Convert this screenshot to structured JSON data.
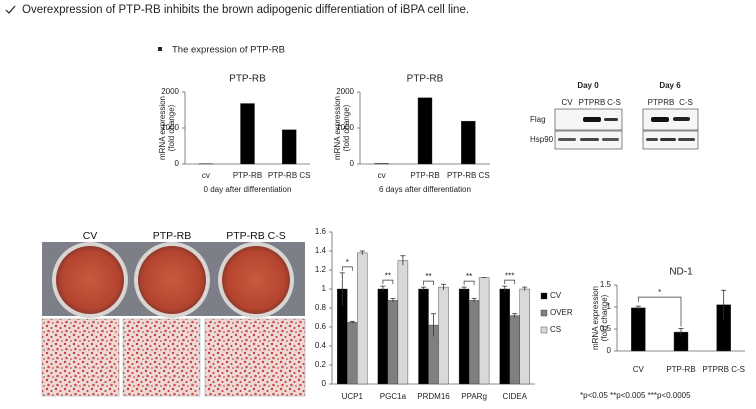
{
  "header": {
    "title": "Overexpression of PTP-RB inhibits the brown adipogenic differentiation of iBPA cell line.",
    "subtitle": "The expression of PTP-RB"
  },
  "chart_data": [
    {
      "type": "bar",
      "title": "PTP-RB",
      "ylabel": [
        "mRNA expression",
        "(fold change)"
      ],
      "xlabel": "0 day after differentiation",
      "categories": [
        "cv",
        "PTP-RB",
        "PTP-RB CS"
      ],
      "values": [
        10,
        1680,
        950
      ],
      "color": "#000000",
      "ylim": [
        0,
        2000
      ],
      "yticks": [
        0,
        1000,
        2000
      ]
    },
    {
      "type": "bar",
      "title": "PTP-RB",
      "ylabel": [
        "mRNA expression",
        "(fold change)"
      ],
      "xlabel": "6 days after differentiation",
      "categories": [
        "cv",
        "PTP-RB",
        "PTP-RB CS"
      ],
      "values": [
        15,
        1840,
        1190
      ],
      "color": "#000000",
      "ylim": [
        0,
        2000
      ],
      "yticks": [
        0,
        1000,
        2000
      ]
    },
    {
      "type": "bar",
      "categories": [
        "UCP1",
        "PGC1a",
        "PRDM16",
        "PPARg",
        "CIDEA"
      ],
      "series": [
        {
          "name": "CV",
          "color": "#000000",
          "values": [
            1,
            1,
            1,
            1,
            1
          ],
          "errors": [
            0.17,
            0.03,
            0.02,
            0.02,
            0.03
          ]
        },
        {
          "name": "OVER",
          "color": "#808080",
          "values": [
            0.65,
            0.88,
            0.62,
            0.88,
            0.72
          ],
          "errors": [
            0.01,
            0.02,
            0.12,
            0.02,
            0.02
          ]
        },
        {
          "name": "CS",
          "color": "#d9d9d9",
          "values": [
            1.38,
            1.3,
            1.02,
            1.12,
            1.0
          ],
          "errors": [
            0.02,
            0.05,
            0.03,
            0.0,
            0.02
          ]
        }
      ],
      "significance": [
        "*",
        "**",
        "**",
        "**",
        "***"
      ],
      "ylim": [
        0,
        1.6
      ],
      "yticks": [
        0,
        0.2,
        0.4,
        0.6,
        0.8,
        1,
        1.2,
        1.4,
        1.6
      ],
      "legend": "right"
    },
    {
      "type": "bar",
      "title": "ND-1",
      "ylabel": [
        "mRNA expression",
        "(fold change)"
      ],
      "categories": [
        "CV",
        "PTP-RB",
        "PTPRB C-S"
      ],
      "values": [
        0.98,
        0.43,
        1.05
      ],
      "errors": [
        0.04,
        0.08,
        0.33
      ],
      "color": "#000000",
      "significance": "*",
      "ylim": [
        0,
        1.5
      ],
      "yticks": [
        0,
        0.5,
        1,
        1.5
      ]
    }
  ],
  "blot": {
    "days": [
      "Day 0",
      "Day 6"
    ],
    "lanes": [
      [
        "CV",
        "PTPRB",
        "C-S"
      ],
      [
        "PTPRB",
        "C-S"
      ]
    ],
    "rows": [
      "Flag",
      "Hsp90"
    ]
  },
  "staining": {
    "labels": [
      "CV",
      "PTP-RB",
      "PTP-RB C-S"
    ]
  },
  "footnote": "*p<0.05   **p<0.005   ***p<0.0005"
}
